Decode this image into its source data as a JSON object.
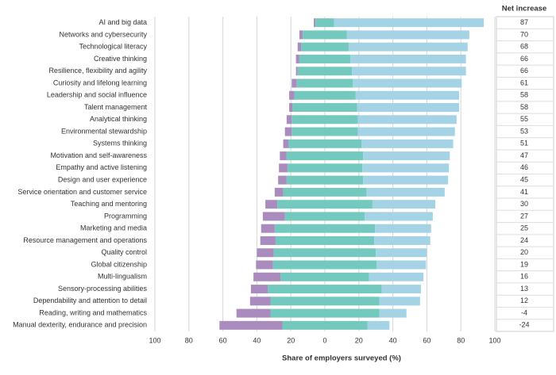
{
  "chart_data": {
    "type": "diverging-bar",
    "x_label": "Share of employers surveyed (%)",
    "net_label": "Net increase",
    "categories": [
      "AI and big data",
      "Networks and cybersecurity",
      "Technological literacy",
      "Creative thinking",
      "Resilience, flexibility and agility",
      "Curiosity and lifelong learning",
      "Leadership and social influence",
      "Talent management",
      "Analytical thinking",
      "Environmental stewardship",
      "Systems thinking",
      "Motivation and self-awareness",
      "Empathy and active listening",
      "Design and user experience",
      "Service orientation and customer service",
      "Teaching and mentoring",
      "Programming",
      "Marketing and media",
      "Resource management and operations",
      "Quality control",
      "Global citizenship",
      "Multi-lingualism",
      "Sensory-processing abilities",
      "Dependability and attention to detail",
      "Reading, writing and mathematics",
      "Manual dexterity, endurance and precision"
    ],
    "net": [
      87,
      70,
      68,
      66,
      66,
      61,
      58,
      58,
      55,
      53,
      51,
      47,
      46,
      45,
      41,
      30,
      27,
      25,
      24,
      20,
      19,
      16,
      13,
      12,
      -4,
      -24
    ],
    "series": [
      {
        "color": "#a98bbd",
        "values": [
          1,
          2,
          2,
          2,
          1,
          3,
          3,
          2,
          3,
          4,
          3,
          4,
          5,
          5,
          5,
          7,
          13,
          8,
          9,
          10,
          10,
          16,
          10,
          12,
          20,
          37
        ]
      },
      {
        "color": "#74c9be",
        "values": [
          11,
          26,
          28,
          30,
          32,
          33,
          36,
          38,
          39,
          39,
          43,
          45,
          44,
          45,
          49,
          56,
          47,
          59,
          58,
          60,
          61,
          52,
          67,
          64,
          64,
          50
        ]
      },
      {
        "color": "#a5d3e6",
        "values": [
          88,
          72,
          70,
          68,
          67,
          64,
          61,
          60,
          58,
          57,
          54,
          51,
          51,
          50,
          46,
          37,
          40,
          33,
          33,
          30,
          29,
          32,
          23,
          24,
          16,
          13
        ]
      }
    ],
    "xlim": [
      -100,
      100
    ],
    "xticks": [
      {
        "value": -100,
        "label": "100"
      },
      {
        "value": -80,
        "label": "80"
      },
      {
        "value": -60,
        "label": "60"
      },
      {
        "value": -40,
        "label": "40"
      },
      {
        "value": -20,
        "label": "20"
      },
      0,
      20,
      40,
      60,
      80,
      100
    ],
    "grid": true
  }
}
